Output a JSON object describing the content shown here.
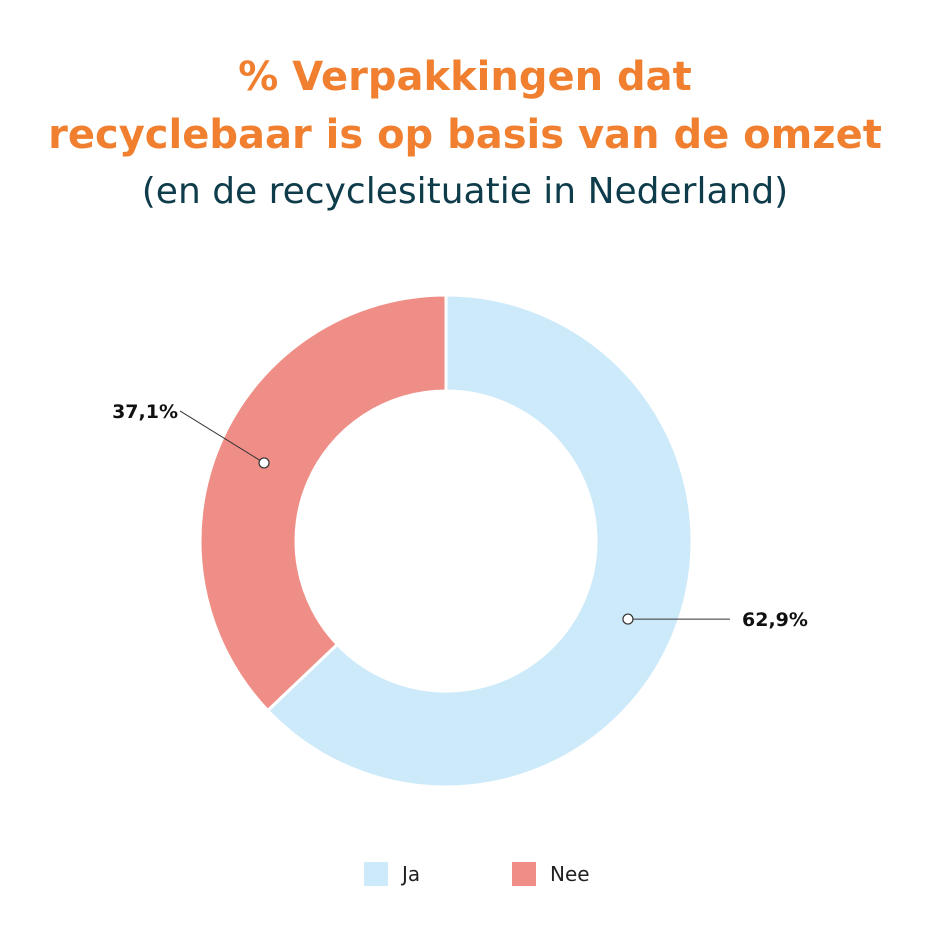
{
  "header": {
    "title_line1": "% Verpakkingen dat",
    "title_line2": "recyclebaar is op basis van de omzet",
    "subtitle": "(en de recyclesituatie in Nederland)"
  },
  "colors": {
    "title": "#f07f2f",
    "subtitle": "#0f3c4b",
    "ja": "#cdeafa",
    "nee": "#ef8e86"
  },
  "chart_data": {
    "type": "pie",
    "variant": "donut",
    "title": "% Verpakkingen dat recyclebaar is op basis van de omzet",
    "subtitle": "(en de recyclesituatie in Nederland)",
    "categories": [
      "Ja",
      "Nee"
    ],
    "values": [
      62.9,
      37.1
    ],
    "labels": [
      "62,9%",
      "37,1%"
    ],
    "colors": [
      "#cdeafa",
      "#ef8e86"
    ],
    "start": "12 o'clock",
    "direction": "clockwise",
    "legend": "bottom-center"
  },
  "legend": {
    "items": [
      {
        "label": "Ja",
        "color": "#cdeafa"
      },
      {
        "label": "Nee",
        "color": "#ef8e86"
      }
    ]
  }
}
